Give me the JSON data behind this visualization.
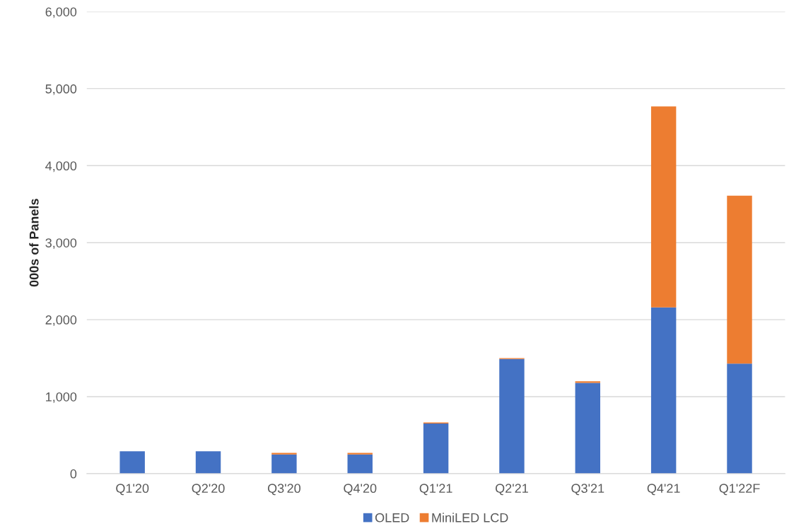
{
  "chart_data": {
    "type": "bar",
    "stacked": true,
    "ylabel": "000s of Panels",
    "categories": [
      "Q1'20",
      "Q2'20",
      "Q3'20",
      "Q4'20",
      "Q1'21",
      "Q2'21",
      "Q3'21",
      "Q4'21",
      "Q1'22F"
    ],
    "series": [
      {
        "name": "OLED",
        "color": "#4472c4",
        "values": [
          290,
          290,
          250,
          250,
          650,
          1490,
          1180,
          2160,
          1430
        ]
      },
      {
        "name": "MiniLED LCD",
        "color": "#ed7d31",
        "values": [
          0,
          0,
          20,
          20,
          15,
          10,
          20,
          2610,
          2180
        ]
      }
    ],
    "ylim": [
      0,
      6000
    ],
    "yticks": [
      {
        "value": 0,
        "label": "0"
      },
      {
        "value": 1000,
        "label": "1,000"
      },
      {
        "value": 2000,
        "label": "2,000"
      },
      {
        "value": 3000,
        "label": "3,000"
      },
      {
        "value": 4000,
        "label": "4,000"
      },
      {
        "value": 5000,
        "label": "5,000"
      },
      {
        "value": 6000,
        "label": "6,000"
      }
    ],
    "grid": "y",
    "legend": "bottom"
  }
}
